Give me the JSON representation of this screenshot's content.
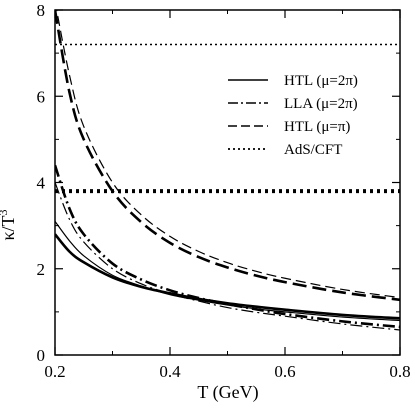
{
  "chart_data": {
    "type": "line",
    "xlabel": "T (GeV)",
    "ylabel_main": "κ/T",
    "ylabel_sup": "3",
    "xlim": [
      0.2,
      0.8
    ],
    "ylim": [
      0,
      8
    ],
    "xticks": [
      0.2,
      0.4,
      0.6,
      0.8
    ],
    "xtick_labels": [
      "0.2",
      "0.4",
      "0.6",
      "0.8"
    ],
    "yticks": [
      0,
      2,
      4,
      6,
      8
    ],
    "ytick_labels": [
      "0",
      "2",
      "4",
      "6",
      "8"
    ],
    "grid": false,
    "legend_position": "top-right",
    "legend": [
      {
        "label": "HTL (μ=2π)",
        "style": "solid"
      },
      {
        "label": "LLA (μ=2π)",
        "style": "dashdot"
      },
      {
        "label": "HTL (μ=π)",
        "style": "dashed"
      },
      {
        "label": "AdS/CFT",
        "style": "dotted"
      }
    ],
    "series": [
      {
        "style": "solid",
        "weight": "thick",
        "x": [
          0.2,
          0.225,
          0.25,
          0.3,
          0.35,
          0.4,
          0.45,
          0.5,
          0.55,
          0.6,
          0.7,
          0.8
        ],
        "y": [
          2.8,
          2.4,
          2.15,
          1.8,
          1.58,
          1.43,
          1.3,
          1.2,
          1.12,
          1.05,
          0.93,
          0.85
        ]
      },
      {
        "style": "solid",
        "weight": "thin",
        "x": [
          0.2,
          0.225,
          0.25,
          0.3,
          0.35,
          0.4,
          0.45,
          0.5,
          0.55,
          0.6,
          0.7,
          0.8
        ],
        "y": [
          3.1,
          2.65,
          2.3,
          1.85,
          1.6,
          1.4,
          1.27,
          1.16,
          1.07,
          1.0,
          0.88,
          0.8
        ]
      },
      {
        "style": "dashdot",
        "weight": "thick",
        "x": [
          0.2,
          0.225,
          0.25,
          0.3,
          0.35,
          0.4,
          0.45,
          0.5,
          0.55,
          0.6,
          0.7,
          0.8
        ],
        "y": [
          4.4,
          3.4,
          2.8,
          2.12,
          1.75,
          1.5,
          1.32,
          1.18,
          1.06,
          0.95,
          0.78,
          0.65
        ]
      },
      {
        "style": "dashdot",
        "weight": "thin",
        "x": [
          0.2,
          0.225,
          0.25,
          0.3,
          0.35,
          0.4,
          0.45,
          0.5,
          0.55,
          0.6,
          0.7,
          0.8
        ],
        "y": [
          4.0,
          3.15,
          2.62,
          2.0,
          1.65,
          1.42,
          1.25,
          1.1,
          0.99,
          0.9,
          0.72,
          0.58
        ]
      },
      {
        "style": "dashed",
        "weight": "thick",
        "x": [
          0.2,
          0.225,
          0.25,
          0.3,
          0.35,
          0.4,
          0.45,
          0.5,
          0.55,
          0.6,
          0.7,
          0.8
        ],
        "y": [
          8.0,
          6.1,
          5.0,
          3.8,
          3.08,
          2.6,
          2.27,
          2.03,
          1.84,
          1.69,
          1.45,
          1.28
        ]
      },
      {
        "style": "dashed",
        "weight": "thin",
        "x": [
          0.2,
          0.225,
          0.25,
          0.3,
          0.35,
          0.4,
          0.45,
          0.5,
          0.55,
          0.6,
          0.7,
          0.8
        ],
        "y": [
          8.2,
          6.5,
          5.3,
          4.0,
          3.25,
          2.75,
          2.4,
          2.14,
          1.94,
          1.78,
          1.52,
          1.33
        ]
      },
      {
        "style": "dotted",
        "weight": "thick",
        "x": [
          0.2,
          0.8
        ],
        "y": [
          3.8,
          3.8
        ]
      },
      {
        "style": "dotted",
        "weight": "thin",
        "x": [
          0.2,
          0.8
        ],
        "y": [
          7.2,
          7.2
        ]
      }
    ]
  }
}
